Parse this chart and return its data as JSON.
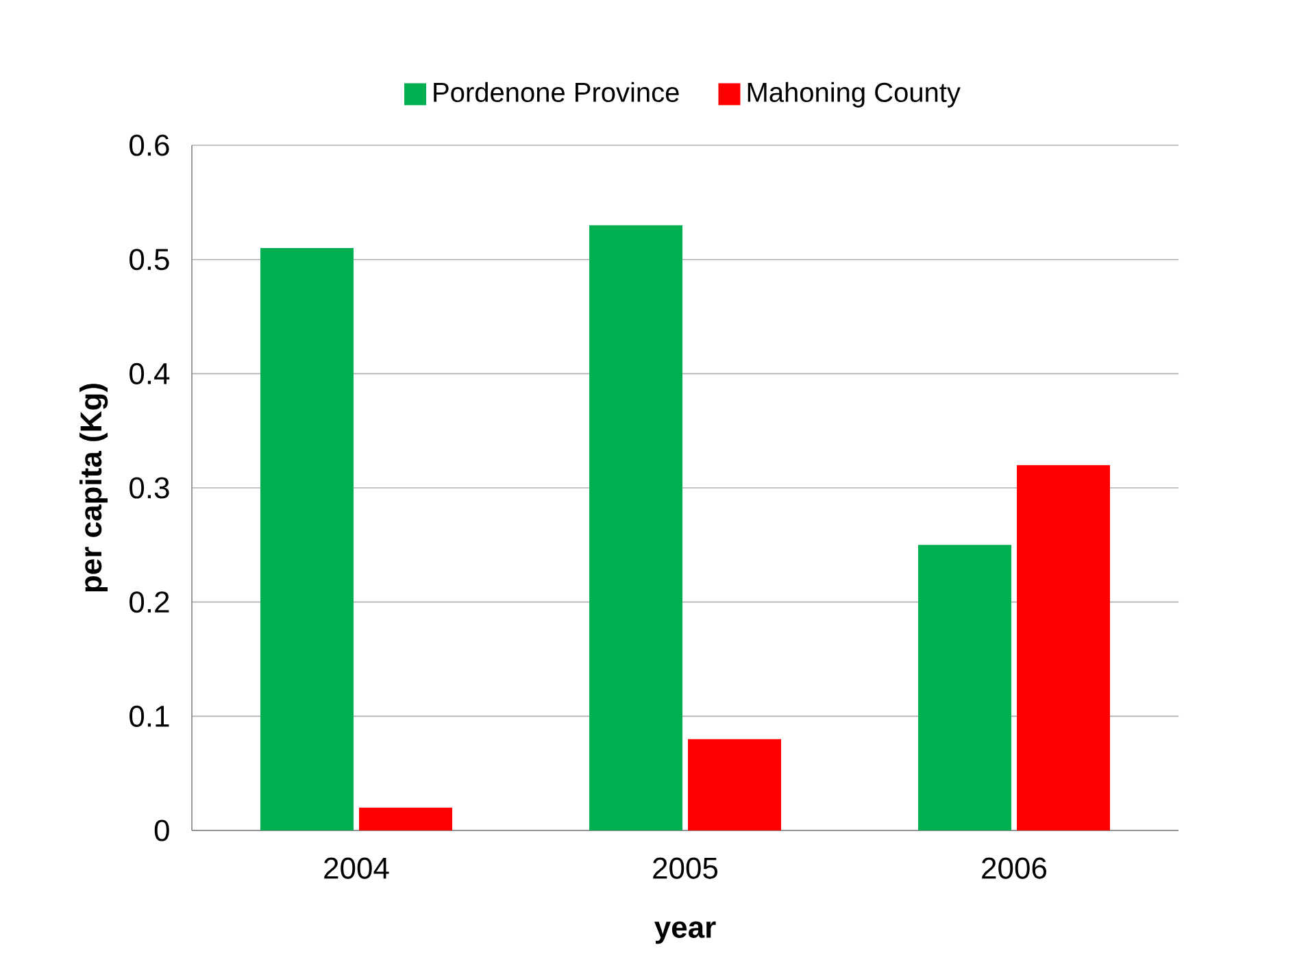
{
  "chart_data": {
    "type": "bar",
    "xlabel": "year",
    "ylabel": "per capita (Kg)",
    "categories": [
      "2004",
      "2005",
      "2006"
    ],
    "series": [
      {
        "name": "Pordenone Province",
        "color": "#00b050",
        "values": [
          0.51,
          0.53,
          0.25
        ]
      },
      {
        "name": "Mahoning County",
        "color": "#ff0000",
        "values": [
          0.02,
          0.08,
          0.32
        ]
      }
    ],
    "ylim": [
      0,
      0.6
    ],
    "yticks": [
      0,
      0.1,
      0.2,
      0.3,
      0.4,
      0.5,
      0.6
    ],
    "grid": "y",
    "legend": "top"
  }
}
